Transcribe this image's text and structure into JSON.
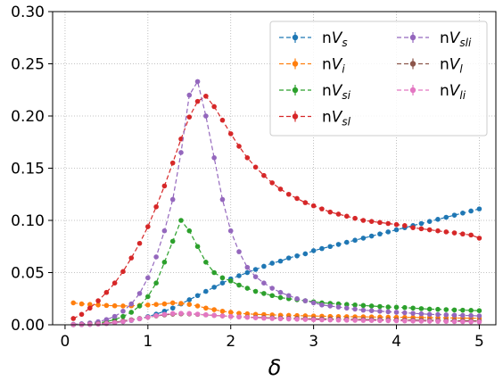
{
  "chart_data": {
    "type": "line",
    "title": "",
    "xlabel": "δ",
    "ylabel": "",
    "xlim": [
      -0.15,
      5.2
    ],
    "ylim": [
      0,
      0.3
    ],
    "x_ticks": [
      0,
      1,
      2,
      3,
      4,
      5
    ],
    "y_ticks": [
      0.0,
      0.05,
      0.1,
      0.15,
      0.2,
      0.25,
      0.3
    ],
    "x_tick_labels": [
      "0",
      "1",
      "2",
      "3",
      "4",
      "5"
    ],
    "y_tick_labels": [
      "0.00",
      "0.05",
      "0.10",
      "0.15",
      "0.20",
      "0.25",
      "0.30"
    ],
    "grid": true,
    "legend_position": "top-right",
    "x": [
      0.1,
      0.2,
      0.3,
      0.4,
      0.5,
      0.6,
      0.7,
      0.8,
      0.9,
      1.0,
      1.1,
      1.2,
      1.3,
      1.4,
      1.5,
      1.6,
      1.7,
      1.8,
      1.9,
      2.0,
      2.1,
      2.2,
      2.3,
      2.4,
      2.5,
      2.6,
      2.7,
      2.8,
      2.9,
      3.0,
      3.1,
      3.2,
      3.3,
      3.4,
      3.5,
      3.6,
      3.7,
      3.8,
      3.9,
      4.0,
      4.1,
      4.2,
      4.3,
      4.4,
      4.5,
      4.6,
      4.7,
      4.8,
      4.9,
      5.0
    ],
    "series": [
      {
        "name": "nV_s",
        "color": "#1f77b4",
        "values": [
          0.0001,
          0.0002,
          0.0004,
          0.0008,
          0.0013,
          0.002,
          0.003,
          0.0042,
          0.0058,
          0.0078,
          0.0102,
          0.013,
          0.016,
          0.02,
          0.024,
          0.028,
          0.032,
          0.036,
          0.04,
          0.044,
          0.047,
          0.05,
          0.053,
          0.056,
          0.059,
          0.061,
          0.064,
          0.066,
          0.068,
          0.071,
          0.073,
          0.075,
          0.077,
          0.079,
          0.081,
          0.083,
          0.085,
          0.087,
          0.089,
          0.091,
          0.093,
          0.095,
          0.097,
          0.099,
          0.101,
          0.103,
          0.105,
          0.107,
          0.109,
          0.111
        ]
      },
      {
        "name": "nV_i",
        "color": "#ff7f0e",
        "values": [
          0.021,
          0.02,
          0.0195,
          0.019,
          0.0185,
          0.0182,
          0.018,
          0.0182,
          0.0185,
          0.019,
          0.0195,
          0.02,
          0.021,
          0.0205,
          0.0195,
          0.018,
          0.016,
          0.0145,
          0.013,
          0.012,
          0.011,
          0.0105,
          0.01,
          0.0098,
          0.0095,
          0.0092,
          0.009,
          0.0088,
          0.0086,
          0.0084,
          0.0082,
          0.008,
          0.0079,
          0.0078,
          0.0077,
          0.0076,
          0.0075,
          0.0074,
          0.0073,
          0.0072,
          0.0071,
          0.007,
          0.0069,
          0.0068,
          0.0067,
          0.0066,
          0.0065,
          0.0064,
          0.0063,
          0.0062
        ]
      },
      {
        "name": "nV_si",
        "color": "#2ca02c",
        "values": [
          0.0002,
          0.0005,
          0.001,
          0.0018,
          0.003,
          0.005,
          0.008,
          0.012,
          0.018,
          0.027,
          0.04,
          0.06,
          0.08,
          0.1,
          0.09,
          0.075,
          0.06,
          0.05,
          0.045,
          0.042,
          0.038,
          0.035,
          0.032,
          0.03,
          0.028,
          0.026,
          0.025,
          0.024,
          0.023,
          0.022,
          0.021,
          0.0205,
          0.02,
          0.0195,
          0.019,
          0.0185,
          0.018,
          0.0175,
          0.017,
          0.0168,
          0.0165,
          0.016,
          0.0155,
          0.015,
          0.0148,
          0.0145,
          0.0142,
          0.014,
          0.0138,
          0.0135
        ]
      },
      {
        "name": "nV_sl",
        "color": "#d62728",
        "values": [
          0.006,
          0.01,
          0.016,
          0.023,
          0.031,
          0.04,
          0.051,
          0.064,
          0.078,
          0.094,
          0.113,
          0.133,
          0.155,
          0.178,
          0.199,
          0.214,
          0.219,
          0.209,
          0.196,
          0.183,
          0.171,
          0.16,
          0.151,
          0.143,
          0.136,
          0.13,
          0.125,
          0.121,
          0.117,
          0.114,
          0.111,
          0.108,
          0.106,
          0.104,
          0.102,
          0.1,
          0.099,
          0.098,
          0.097,
          0.096,
          0.095,
          0.093,
          0.092,
          0.091,
          0.09,
          0.089,
          0.088,
          0.087,
          0.086,
          0.083
        ]
      },
      {
        "name": "nV_sli",
        "color": "#9467bd",
        "values": [
          0.0005,
          0.001,
          0.0018,
          0.003,
          0.005,
          0.008,
          0.013,
          0.02,
          0.03,
          0.045,
          0.065,
          0.09,
          0.12,
          0.165,
          0.22,
          0.233,
          0.2,
          0.16,
          0.12,
          0.09,
          0.07,
          0.055,
          0.046,
          0.04,
          0.035,
          0.031,
          0.028,
          0.025,
          0.023,
          0.021,
          0.019,
          0.018,
          0.017,
          0.016,
          0.015,
          0.014,
          0.0135,
          0.013,
          0.0125,
          0.012,
          0.0115,
          0.011,
          0.0105,
          0.01,
          0.0098,
          0.0095,
          0.0092,
          0.009,
          0.0088,
          0.0085
        ]
      },
      {
        "name": "nV_l",
        "color": "#8c564b",
        "values": [
          0.0001,
          0.0003,
          0.0006,
          0.001,
          0.0016,
          0.0025,
          0.0036,
          0.0048,
          0.006,
          0.0072,
          0.0085,
          0.0095,
          0.0102,
          0.0105,
          0.0104,
          0.01,
          0.0095,
          0.009,
          0.0085,
          0.008,
          0.0077,
          0.0074,
          0.0071,
          0.0068,
          0.0066,
          0.0064,
          0.0062,
          0.006,
          0.0058,
          0.0057,
          0.0056,
          0.0055,
          0.0054,
          0.0053,
          0.0052,
          0.0051,
          0.005,
          0.0049,
          0.0048,
          0.0047,
          0.0046,
          0.0045,
          0.0044,
          0.0043,
          0.0042,
          0.0041,
          0.004,
          0.0039,
          0.0038,
          0.0037
        ]
      },
      {
        "name": "nV_li",
        "color": "#e377c2",
        "values": [
          0.0001,
          0.0002,
          0.0004,
          0.0007,
          0.0012,
          0.002,
          0.003,
          0.0043,
          0.0057,
          0.0072,
          0.0088,
          0.01,
          0.0108,
          0.011,
          0.0108,
          0.0102,
          0.0096,
          0.009,
          0.0085,
          0.008,
          0.0075,
          0.0071,
          0.0067,
          0.0063,
          0.006,
          0.0057,
          0.0055,
          0.0053,
          0.0051,
          0.0049,
          0.0047,
          0.0046,
          0.0045,
          0.0044,
          0.0043,
          0.0042,
          0.0041,
          0.004,
          0.0039,
          0.0038,
          0.0037,
          0.0036,
          0.0035,
          0.0034,
          0.0033,
          0.0032,
          0.0031,
          0.003,
          0.0029,
          0.0028
        ]
      }
    ],
    "legend_labels": [
      {
        "prefix": "n",
        "main": "V",
        "sub": "s"
      },
      {
        "prefix": "n",
        "main": "V",
        "sub": "i"
      },
      {
        "prefix": "n",
        "main": "V",
        "sub": "si"
      },
      {
        "prefix": "n",
        "main": "V",
        "sub": "sl"
      },
      {
        "prefix": "n",
        "main": "V",
        "sub": "sli"
      },
      {
        "prefix": "n",
        "main": "V",
        "sub": "l"
      },
      {
        "prefix": "n",
        "main": "V",
        "sub": "li"
      }
    ]
  }
}
